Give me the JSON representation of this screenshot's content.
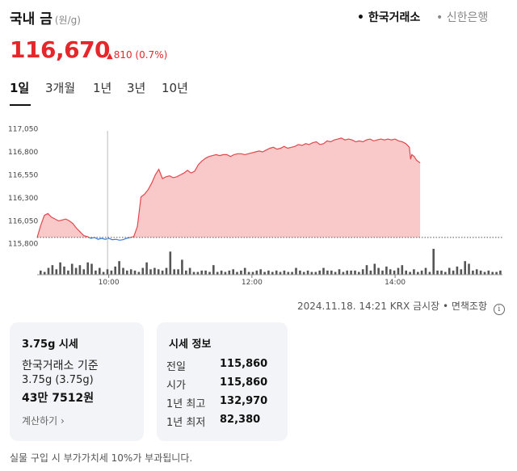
{
  "header": {
    "title": "국내 금",
    "unit": "(원/g)",
    "sources": [
      {
        "label": "• 한국거래소",
        "selected": true
      },
      {
        "label": "• 신한은행",
        "selected": false
      }
    ]
  },
  "price": {
    "current": "116,670",
    "change_arrow": "▲",
    "change": "810 (0.7%)",
    "color": "#e5262b"
  },
  "tabs": [
    "1일",
    "3개월",
    "1년",
    "3년",
    "10년"
  ],
  "active_tab": "1일",
  "chart_data": {
    "type": "area",
    "title": "",
    "xlabel": "",
    "ylabel": "",
    "y_ticks": [
      "117,050",
      "116,800",
      "116,550",
      "116,300",
      "116,050",
      "115,800"
    ],
    "ylim": [
      115780,
      117080
    ],
    "x_ticks": [
      "10:00",
      "12:00",
      "14:00"
    ],
    "x_range_minutes": [
      540,
      930
    ],
    "baseline_value": 115860,
    "baseline_label": "전일",
    "marker_time": "09:59",
    "series": [
      {
        "points": [
          [
            "09:00",
            115860
          ],
          [
            "09:03",
            115990
          ],
          [
            "09:06",
            116100
          ],
          [
            "09:09",
            116120
          ],
          [
            "09:12",
            116080
          ],
          [
            "09:15",
            116060
          ],
          [
            "09:18",
            116040
          ],
          [
            "09:21",
            116050
          ],
          [
            "09:24",
            116060
          ],
          [
            "09:27",
            116040
          ],
          [
            "09:30",
            116010
          ],
          [
            "09:33",
            115960
          ],
          [
            "09:36",
            115920
          ],
          [
            "09:39",
            115880
          ],
          [
            "09:42",
            115870
          ],
          [
            "09:45",
            115850
          ],
          [
            "09:48",
            115860
          ],
          [
            "09:51",
            115840
          ],
          [
            "09:54",
            115850
          ],
          [
            "09:57",
            115840
          ],
          [
            "10:00",
            115850
          ],
          [
            "10:03",
            115835
          ],
          [
            "10:06",
            115840
          ],
          [
            "10:09",
            115830
          ],
          [
            "10:12",
            115835
          ],
          [
            "10:15",
            115850
          ],
          [
            "10:18",
            115860
          ],
          [
            "10:21",
            115870
          ],
          [
            "10:24",
            115980
          ],
          [
            "10:27",
            116300
          ],
          [
            "10:30",
            116330
          ],
          [
            "10:33",
            116380
          ],
          [
            "10:36",
            116450
          ],
          [
            "10:39",
            116540
          ],
          [
            "10:42",
            116600
          ],
          [
            "10:45",
            116500
          ],
          [
            "10:48",
            116520
          ],
          [
            "10:51",
            116530
          ],
          [
            "10:54",
            116510
          ],
          [
            "10:57",
            116520
          ],
          [
            "11:00",
            116540
          ],
          [
            "11:03",
            116560
          ],
          [
            "11:06",
            116590
          ],
          [
            "11:09",
            116560
          ],
          [
            "11:12",
            116580
          ],
          [
            "11:15",
            116650
          ],
          [
            "11:18",
            116690
          ],
          [
            "11:21",
            116720
          ],
          [
            "11:24",
            116740
          ],
          [
            "11:27",
            116750
          ],
          [
            "11:30",
            116760
          ],
          [
            "11:33",
            116750
          ],
          [
            "11:36",
            116760
          ],
          [
            "11:39",
            116760
          ],
          [
            "11:42",
            116740
          ],
          [
            "11:45",
            116760
          ],
          [
            "11:48",
            116770
          ],
          [
            "11:51",
            116770
          ],
          [
            "11:54",
            116760
          ],
          [
            "11:57",
            116770
          ],
          [
            "12:00",
            116780
          ],
          [
            "12:03",
            116790
          ],
          [
            "12:06",
            116800
          ],
          [
            "12:09",
            116790
          ],
          [
            "12:12",
            116810
          ],
          [
            "12:15",
            116830
          ],
          [
            "12:18",
            116840
          ],
          [
            "12:21",
            116820
          ],
          [
            "12:24",
            116830
          ],
          [
            "12:27",
            116850
          ],
          [
            "12:30",
            116830
          ],
          [
            "12:33",
            116840
          ],
          [
            "12:36",
            116850
          ],
          [
            "12:39",
            116870
          ],
          [
            "12:42",
            116860
          ],
          [
            "12:45",
            116880
          ],
          [
            "12:48",
            116870
          ],
          [
            "12:51",
            116890
          ],
          [
            "12:54",
            116900
          ],
          [
            "12:57",
            116870
          ],
          [
            "13:00",
            116880
          ],
          [
            "13:03",
            116910
          ],
          [
            "13:06",
            116900
          ],
          [
            "13:09",
            116920
          ],
          [
            "13:12",
            116930
          ],
          [
            "13:15",
            116940
          ],
          [
            "13:18",
            116920
          ],
          [
            "13:21",
            116930
          ],
          [
            "13:24",
            116920
          ],
          [
            "13:27",
            116900
          ],
          [
            "13:30",
            116910
          ],
          [
            "13:33",
            116900
          ],
          [
            "13:36",
            116920
          ],
          [
            "13:39",
            116930
          ],
          [
            "13:42",
            116910
          ],
          [
            "13:45",
            116920
          ],
          [
            "13:48",
            116930
          ],
          [
            "13:51",
            116920
          ],
          [
            "13:54",
            116930
          ],
          [
            "13:57",
            116920
          ],
          [
            "14:00",
            116930
          ],
          [
            "14:03",
            116910
          ],
          [
            "14:06",
            116900
          ],
          [
            "14:09",
            116880
          ],
          [
            "14:12",
            116840
          ],
          [
            "14:13",
            116710
          ],
          [
            "14:14",
            116760
          ],
          [
            "14:16",
            116740
          ],
          [
            "14:18",
            116700
          ],
          [
            "14:21",
            116670
          ]
        ]
      }
    ],
    "volume": [
      3,
      2,
      5,
      7,
      4,
      9,
      6,
      3,
      8,
      5,
      7,
      4,
      9,
      8,
      3,
      5,
      2,
      4,
      3,
      6,
      10,
      5,
      3,
      4,
      3,
      2,
      5,
      9,
      4,
      5,
      4,
      3,
      5,
      17,
      4,
      4,
      11,
      3,
      5,
      2,
      2,
      3,
      3,
      2,
      7,
      2,
      3,
      2,
      3,
      4,
      2,
      3,
      5,
      2,
      2,
      3,
      4,
      2,
      3,
      2,
      3,
      2,
      3,
      2,
      2,
      5,
      3,
      2,
      3,
      2,
      2,
      3,
      5,
      3,
      3,
      2,
      4,
      2,
      3,
      3,
      3,
      2,
      4,
      7,
      3,
      8,
      5,
      3,
      6,
      4,
      3,
      5,
      7,
      3,
      2,
      4,
      2,
      3,
      5,
      2,
      19,
      3,
      3,
      2,
      5,
      3,
      6,
      4,
      10,
      8,
      3,
      4,
      3,
      2,
      3,
      2,
      2,
      3
    ],
    "grid": false
  },
  "footer": {
    "timestamp_source": "2024.11.18. 14:21 KRX 금시장",
    "disclaimer": "• 면책조항",
    "info_icon": "i"
  },
  "card1": {
    "title": "3.75g 시세",
    "line1": "한국거래소 기준",
    "line2": "3.75g (3.75g)",
    "line3": "43만 7512원",
    "link": "계산하기 ›"
  },
  "card2": {
    "title": "시세 정보",
    "rows": [
      {
        "label": "전일",
        "value": "115,860"
      },
      {
        "label": "시가",
        "value": "115,860"
      },
      {
        "label": "1년 최고",
        "value": "132,970"
      },
      {
        "label": "1년 최저",
        "value": "82,380"
      }
    ]
  },
  "notice": "실물 구입 시 부가가치세 10%가 부과됩니다."
}
